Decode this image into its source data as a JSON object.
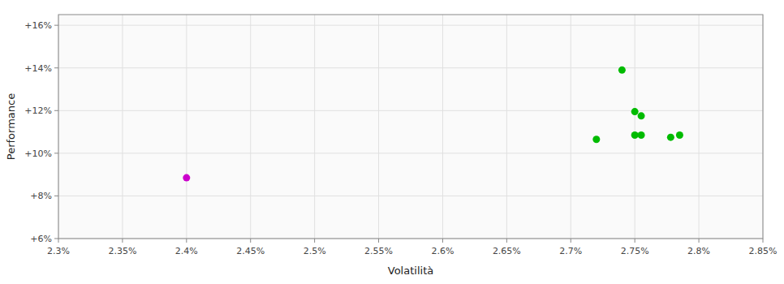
{
  "chart_data": {
    "type": "scatter",
    "xlabel": "Volatilità",
    "ylabel": "Performance",
    "xlim": [
      0.023,
      0.0285
    ],
    "ylim": [
      0.06,
      0.165
    ],
    "xticks": [
      {
        "value": 0.023,
        "label": "2.3%"
      },
      {
        "value": 0.0235,
        "label": "2.35%"
      },
      {
        "value": 0.024,
        "label": "2.4%"
      },
      {
        "value": 0.0245,
        "label": "2.45%"
      },
      {
        "value": 0.025,
        "label": "2.5%"
      },
      {
        "value": 0.0255,
        "label": "2.55%"
      },
      {
        "value": 0.026,
        "label": "2.6%"
      },
      {
        "value": 0.0265,
        "label": "2.65%"
      },
      {
        "value": 0.027,
        "label": "2.7%"
      },
      {
        "value": 0.0275,
        "label": "2.75%"
      },
      {
        "value": 0.028,
        "label": "2.8%"
      },
      {
        "value": 0.0285,
        "label": "2.85%"
      }
    ],
    "yticks": [
      {
        "value": 0.06,
        "label": "+6%"
      },
      {
        "value": 0.08,
        "label": "+8%"
      },
      {
        "value": 0.1,
        "label": "+10%"
      },
      {
        "value": 0.12,
        "label": "+12%"
      },
      {
        "value": 0.14,
        "label": "+14%"
      },
      {
        "value": 0.16,
        "label": "+16%"
      }
    ],
    "grid": true,
    "series": [
      {
        "color": "#00bb00",
        "x": [
          0.0274,
          0.0275,
          0.02755,
          0.0275,
          0.02755,
          0.02785,
          0.0272,
          0.02778
        ],
        "values": [
          0.139,
          0.1195,
          0.1175,
          0.1085,
          0.1085,
          0.1085,
          0.1065,
          0.1075
        ]
      },
      {
        "color": "#cc00cc",
        "x": [
          0.024
        ],
        "values": [
          0.0885
        ]
      }
    ]
  }
}
